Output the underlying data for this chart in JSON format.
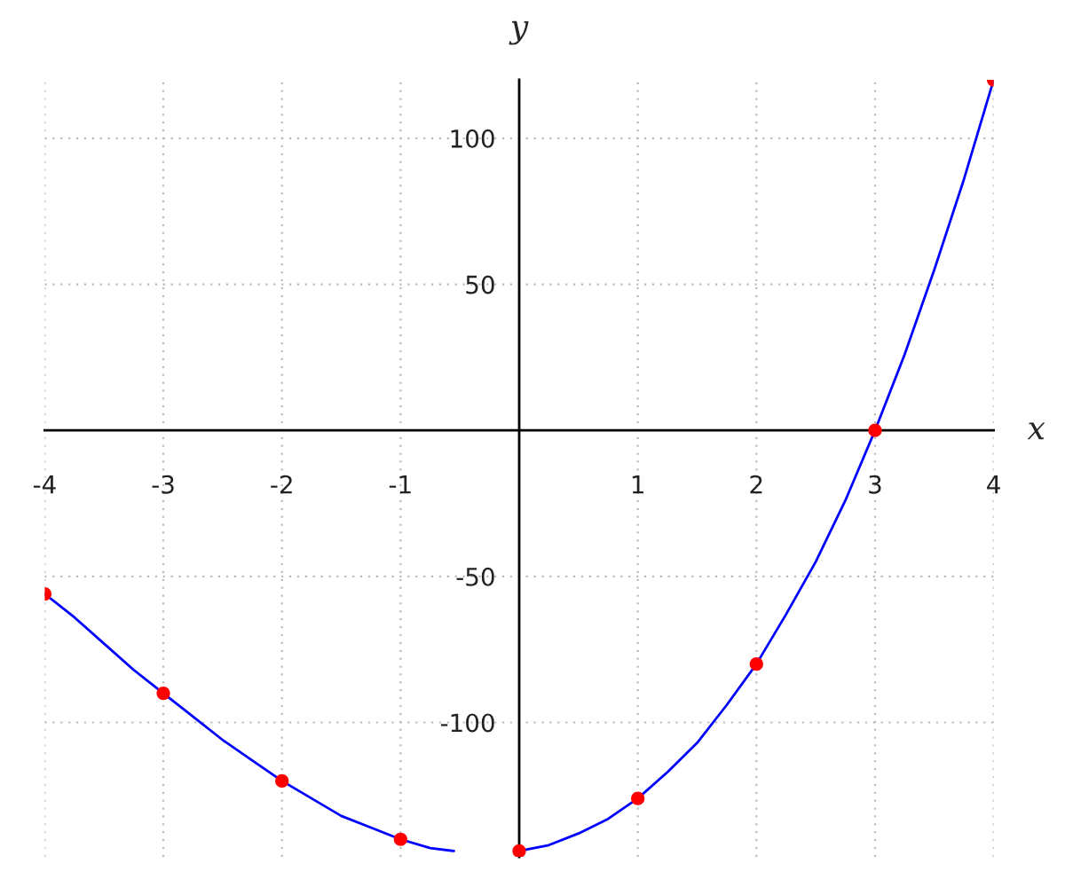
{
  "chart_data": {
    "type": "line",
    "xlabel": "x",
    "ylabel": "y",
    "xlim": [
      -4,
      4
    ],
    "ylim": [
      -146,
      120
    ],
    "xticks": [
      -4,
      -3,
      -2,
      -1,
      1,
      2,
      3,
      4
    ],
    "yticks": [
      -100,
      -50,
      50,
      100
    ],
    "grid": true,
    "series": [
      {
        "color": "#0000ff",
        "line_style": "solid",
        "marker": "none",
        "x": [
          -4,
          -3.75,
          -3.5,
          -3.25,
          -3,
          -2.75,
          -2.5,
          -2.25,
          -2,
          -1.75,
          -1.5,
          -1.25,
          -1,
          -0.75,
          -0.55,
          -0.3,
          0,
          0.25,
          0.5,
          0.75,
          1,
          1.25,
          1.5,
          1.75,
          2,
          2.25,
          2.5,
          2.75,
          3,
          3.25,
          3.5,
          3.75,
          4
        ],
        "values": [
          -56,
          -64,
          -73,
          -82,
          -90,
          -98,
          -106,
          -113,
          -120,
          -126,
          -132,
          -136,
          -140,
          -143,
          -144,
          null,
          -144,
          -142,
          -138,
          -133,
          -126,
          -117,
          -107,
          -94,
          -80,
          -63,
          -45,
          -24,
          0,
          26,
          55,
          86,
          120
        ]
      },
      {
        "type": "scatter",
        "color": "#ff0000",
        "marker": "circle",
        "x": [
          -4,
          -3,
          -2,
          -1,
          0,
          1,
          2,
          3,
          4
        ],
        "values": [
          -56,
          -90,
          -120,
          -140,
          -144,
          -126,
          -80,
          0,
          120
        ]
      }
    ]
  }
}
